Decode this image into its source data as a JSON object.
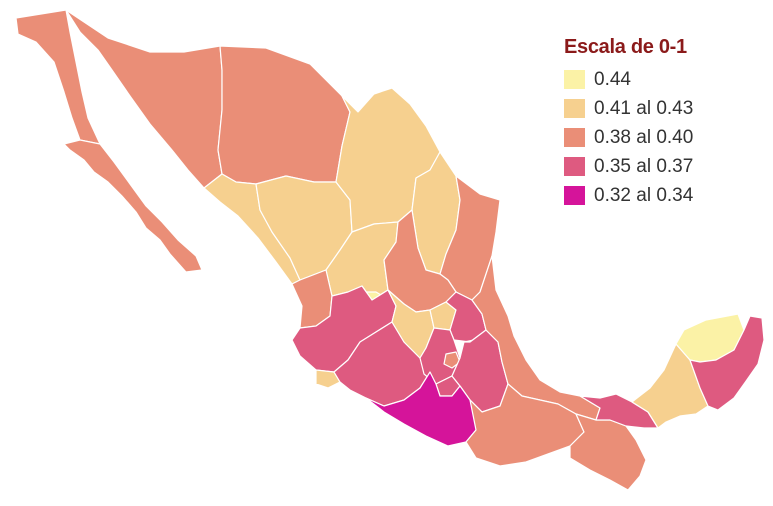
{
  "legend": {
    "title": "Escala de 0-1",
    "items": [
      {
        "label": "0.44",
        "color": "#fbf2a6"
      },
      {
        "label": "0.41 al 0.43",
        "color": "#f6d08f"
      },
      {
        "label": "0.38 al 0.40",
        "color": "#ea8e77"
      },
      {
        "label": "0.35 al 0.37",
        "color": "#de5a80"
      },
      {
        "label": "0.32 al 0.34",
        "color": "#d5149a"
      }
    ]
  },
  "map_data": {
    "type": "choropleth",
    "region": "Mexico",
    "states": [
      {
        "name": "Baja California",
        "class": 2
      },
      {
        "name": "Baja California Sur",
        "class": 2
      },
      {
        "name": "Sonora",
        "class": 2
      },
      {
        "name": "Chihuahua",
        "class": 2
      },
      {
        "name": "Sinaloa",
        "class": 1
      },
      {
        "name": "Durango",
        "class": 1
      },
      {
        "name": "Coahuila",
        "class": 1
      },
      {
        "name": "Nuevo León",
        "class": 1
      },
      {
        "name": "Tamaulipas",
        "class": 2
      },
      {
        "name": "Zacatecas",
        "class": 1
      },
      {
        "name": "San Luis Potosí",
        "class": 2
      },
      {
        "name": "Nayarit",
        "class": 2
      },
      {
        "name": "Aguascalientes",
        "class": 0
      },
      {
        "name": "Jalisco",
        "class": 3
      },
      {
        "name": "Colima",
        "class": 1
      },
      {
        "name": "Michoacán",
        "class": 3
      },
      {
        "name": "Guanajuato",
        "class": 1
      },
      {
        "name": "Querétaro",
        "class": 1
      },
      {
        "name": "Hidalgo",
        "class": 3
      },
      {
        "name": "Estado de México",
        "class": 3
      },
      {
        "name": "Ciudad de México",
        "class": 2
      },
      {
        "name": "Morelos",
        "class": 3
      },
      {
        "name": "Tlaxcala",
        "class": 3
      },
      {
        "name": "Puebla",
        "class": 3
      },
      {
        "name": "Veracruz",
        "class": 2
      },
      {
        "name": "Guerrero",
        "class": 4
      },
      {
        "name": "Oaxaca",
        "class": 2
      },
      {
        "name": "Chiapas",
        "class": 2
      },
      {
        "name": "Tabasco",
        "class": 3
      },
      {
        "name": "Campeche",
        "class": 1
      },
      {
        "name": "Yucatán",
        "class": 0
      },
      {
        "name": "Quintana Roo",
        "class": 3
      }
    ]
  }
}
